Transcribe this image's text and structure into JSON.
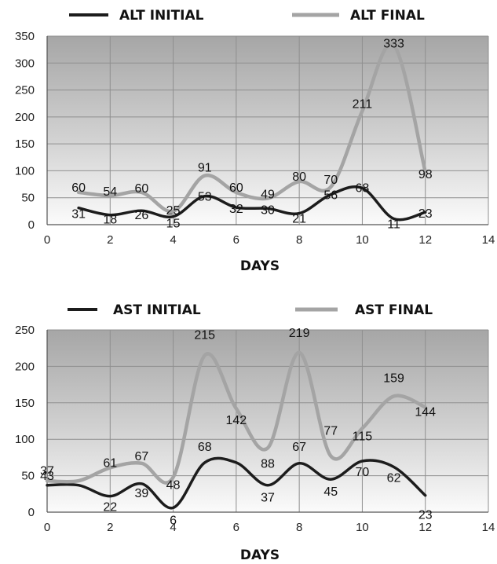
{
  "chart_data": [
    {
      "type": "line",
      "xlabel": "DAYS",
      "ylabel": "",
      "xlim": [
        0,
        14
      ],
      "ylim": [
        0,
        350
      ],
      "x_ticks": [
        "0",
        "2",
        "4",
        "6",
        "8",
        "10",
        "12",
        "14"
      ],
      "y_ticks": [
        "0",
        "50",
        "100",
        "150",
        "200",
        "250",
        "300",
        "350"
      ],
      "grid": true,
      "legend_position": "top",
      "series": [
        {
          "name": "ALT INITIAL",
          "color": "#1c1c1c",
          "x": [
            1,
            2,
            3,
            4,
            5,
            6,
            7,
            8,
            9,
            10,
            11,
            12
          ],
          "values": [
            31,
            18,
            26,
            15,
            53,
            32,
            30,
            21,
            56,
            68,
            11,
            23
          ],
          "labels": [
            "31",
            "18",
            "26",
            "15",
            "53",
            "32",
            "30",
            "21",
            "56",
            "68",
            "11",
            "23"
          ]
        },
        {
          "name": "ALT FINAL",
          "color": "#a4a4a4",
          "x": [
            1,
            2,
            3,
            4,
            5,
            6,
            7,
            8,
            9,
            10,
            11,
            12
          ],
          "values": [
            60,
            54,
            60,
            25,
            91,
            60,
            49,
            80,
            70,
            211,
            333,
            98
          ],
          "labels": [
            "60",
            "54",
            "60",
            "25",
            "91",
            "60",
            "49",
            "80",
            "70",
            "211",
            "333",
            "98"
          ]
        }
      ]
    },
    {
      "type": "line",
      "xlabel": "DAYS",
      "ylabel": "",
      "xlim": [
        0,
        14
      ],
      "ylim": [
        0,
        250
      ],
      "x_ticks": [
        "0",
        "2",
        "4",
        "6",
        "8",
        "10",
        "12",
        "14"
      ],
      "y_ticks": [
        "0",
        "50",
        "100",
        "150",
        "200",
        "250"
      ],
      "grid": true,
      "legend_position": "top",
      "series": [
        {
          "name": "AST INITIAL",
          "color": "#1c1c1c",
          "x": [
            0,
            1,
            2,
            3,
            4,
            5,
            6,
            7,
            8,
            9,
            10,
            11,
            12
          ],
          "values": [
            37,
            37,
            22,
            39,
            6,
            68,
            68,
            37,
            67,
            45,
            70,
            62,
            23
          ],
          "labels": [
            "37",
            "",
            "22",
            "39",
            "6",
            "68",
            "",
            "37",
            "67",
            "45",
            "70",
            "62",
            "23"
          ]
        },
        {
          "name": "AST FINAL",
          "color": "#a4a4a4",
          "x": [
            0,
            1,
            2,
            3,
            4,
            5,
            6,
            7,
            8,
            9,
            10,
            11,
            12
          ],
          "values": [
            43,
            43,
            61,
            67,
            48,
            215,
            142,
            88,
            219,
            77,
            115,
            159,
            144
          ],
          "labels": [
            "43",
            "",
            "61",
            "67",
            "48",
            "215",
            "142",
            "88",
            "219",
            "77",
            "115",
            "159",
            "144"
          ]
        }
      ]
    }
  ]
}
